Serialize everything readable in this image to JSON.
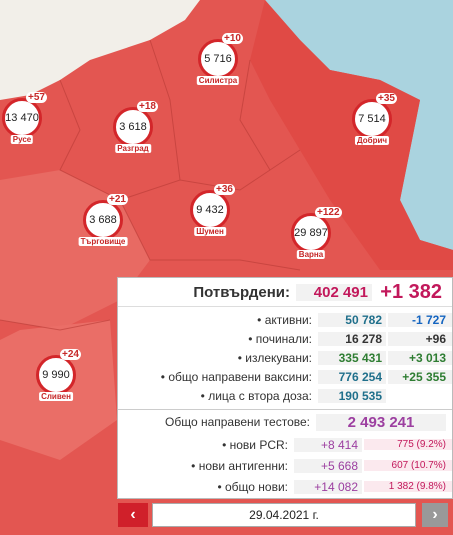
{
  "markers": [
    {
      "name": "Русе",
      "value": "13 470",
      "delta": "+57"
    },
    {
      "name": "Силистра",
      "value": "5 716",
      "delta": "+10"
    },
    {
      "name": "Разград",
      "value": "3 618",
      "delta": "+18"
    },
    {
      "name": "Добрич",
      "value": "7 514",
      "delta": "+35"
    },
    {
      "name": "Търговище",
      "value": "3 688",
      "delta": "+21"
    },
    {
      "name": "Шумен",
      "value": "9 432",
      "delta": "+36"
    },
    {
      "name": "Варна",
      "value": "29 897",
      "delta": "+122"
    },
    {
      "name": "Сливен",
      "value": "9 990",
      "delta": "+24"
    }
  ],
  "panel": {
    "title": "Потвърдени:",
    "total": "402 491",
    "total_delta": "+1 382",
    "rows": [
      {
        "label": "• активни:",
        "value": "50 782",
        "delta": "-1 727"
      },
      {
        "label": "• починали:",
        "value": "16 278",
        "delta": "+96"
      },
      {
        "label": "• излекувани:",
        "value": "335 431",
        "delta": "+3 013"
      },
      {
        "label": "• общо направени ваксини:",
        "value": "776 254",
        "delta": "+25 355"
      },
      {
        "label": "• лица с втора доза:",
        "value": "190 535"
      }
    ],
    "tests_label": "Общо направени тестове:",
    "tests_total": "2 493 241",
    "test_rows": [
      {
        "label": "• нови PCR:",
        "value": "+8 414",
        "share": "775 (9.2%)"
      },
      {
        "label": "• нови антигенни:",
        "value": "+5 668",
        "share": "607 (10.7%)"
      },
      {
        "label": "• общо нови:",
        "value": "+14 082",
        "share": "1 382 (9.8%)"
      }
    ]
  },
  "date": "29.04.2021 г."
}
